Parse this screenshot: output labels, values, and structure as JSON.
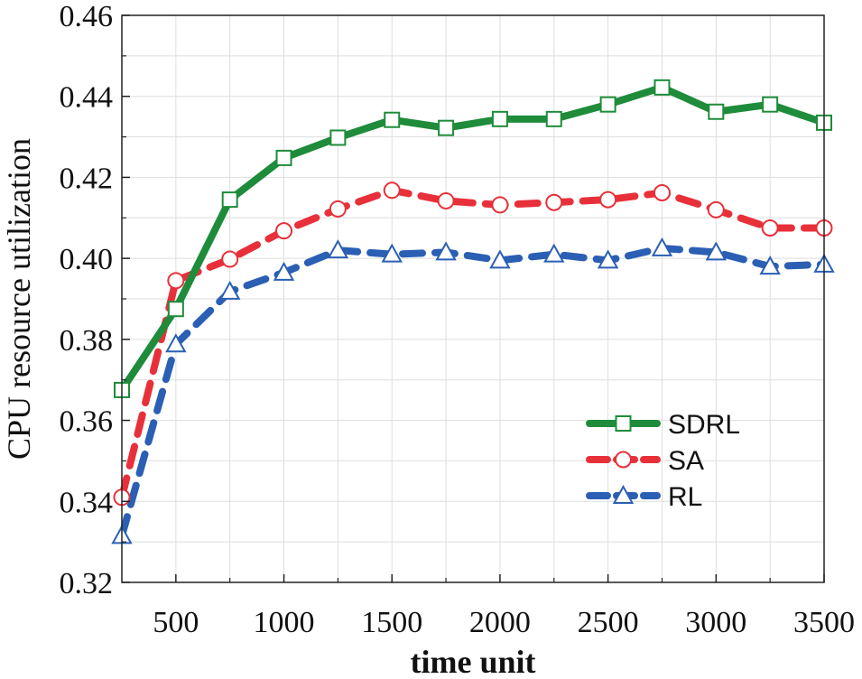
{
  "chart_data": {
    "type": "line",
    "title": "",
    "xlabel": "time unit",
    "ylabel": "CPU resource utilization",
    "xlim": [
      250,
      3500
    ],
    "ylim": [
      0.32,
      0.46
    ],
    "xticks": [
      500,
      1000,
      1500,
      2000,
      2500,
      3000,
      3500
    ],
    "xtick_labels": [
      "500",
      "1000",
      "1500",
      "2000",
      "2500",
      "3000",
      "3500"
    ],
    "yticks": [
      0.32,
      0.34,
      0.36,
      0.38,
      0.4,
      0.42,
      0.44,
      0.46
    ],
    "ytick_labels": [
      "0.32",
      "0.34",
      "0.36",
      "0.38",
      "0.40",
      "0.42",
      "0.44",
      "0.46"
    ],
    "grid": true,
    "legend_position": "bottom-right",
    "x": [
      250,
      500,
      750,
      1000,
      1250,
      1500,
      1750,
      2000,
      2250,
      2500,
      2750,
      3000,
      3250,
      3500
    ],
    "series": [
      {
        "name": "SDRL",
        "color": "#1e8c3a",
        "marker": "square",
        "dash": "solid",
        "values": [
          0.3675,
          0.3875,
          0.4145,
          0.4248,
          0.4298,
          0.4342,
          0.4322,
          0.4344,
          0.4344,
          0.438,
          0.4422,
          0.4362,
          0.438,
          0.4335
        ]
      },
      {
        "name": "SA",
        "color": "#e8303a",
        "marker": "circle",
        "dash": "dashed",
        "values": [
          0.341,
          0.3945,
          0.3998,
          0.4068,
          0.4122,
          0.4168,
          0.4142,
          0.4132,
          0.4138,
          0.4145,
          0.4162,
          0.412,
          0.4075,
          0.4075
        ]
      },
      {
        "name": "RL",
        "color": "#2a5fb4",
        "marker": "triangle",
        "dash": "dashed",
        "values": [
          0.3315,
          0.3788,
          0.3918,
          0.3965,
          0.402,
          0.401,
          0.4015,
          0.3995,
          0.401,
          0.3995,
          0.4025,
          0.4015,
          0.398,
          0.3985
        ]
      }
    ]
  }
}
